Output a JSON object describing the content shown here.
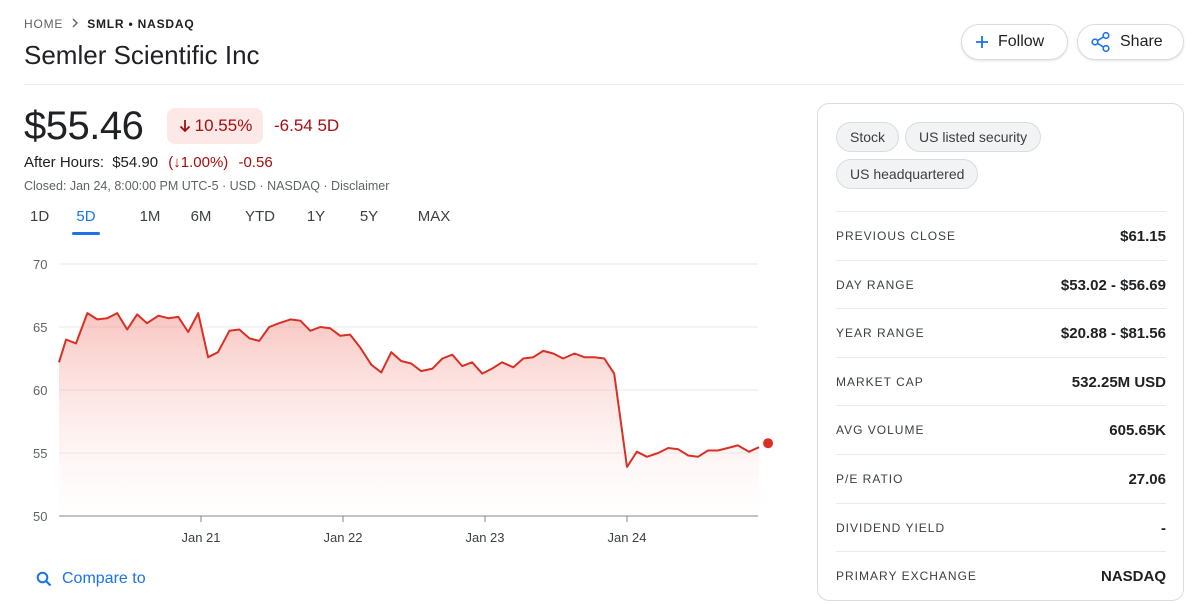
{
  "breadcrumb": {
    "home": "HOME",
    "ticker": "SMLR • NASDAQ"
  },
  "company": {
    "name": "Semler Scientific Inc"
  },
  "actions": {
    "follow_label": "Follow",
    "share_label": "Share"
  },
  "quote": {
    "price": "$55.46",
    "change_pct": "10.55%",
    "change_abs": "-6.54 5D",
    "after_hours_label": "After Hours:",
    "after_hours_price": "$54.90",
    "after_hours_pct": "(↓1.00%)",
    "after_hours_abs": "-0.56",
    "closed_line": "Closed: Jan 24, 8:00:00 PM UTC-5 · USD · NASDAQ · Disclaimer"
  },
  "colors": {
    "negative": "#a50e0e",
    "line": "#d93025",
    "accent": "#1a73e8"
  },
  "range_tabs": [
    "1D",
    "5D",
    "1M",
    "6M",
    "YTD",
    "1Y",
    "5Y",
    "MAX"
  ],
  "selected_range": "5D",
  "compare_label": "Compare to",
  "chips": [
    "Stock",
    "US listed security",
    "US headquartered"
  ],
  "stats": [
    {
      "label": "PREVIOUS CLOSE",
      "value": "$61.15"
    },
    {
      "label": "DAY RANGE",
      "value": "$53.02 - $56.69"
    },
    {
      "label": "YEAR RANGE",
      "value": "$20.88 - $81.56"
    },
    {
      "label": "MARKET CAP",
      "value": "532.25M USD"
    },
    {
      "label": "AVG VOLUME",
      "value": "605.65K"
    },
    {
      "label": "P/E RATIO",
      "value": "27.06"
    },
    {
      "label": "DIVIDEND YIELD",
      "value": "-"
    },
    {
      "label": "PRIMARY EXCHANGE",
      "value": "NASDAQ"
    }
  ],
  "chart_data": {
    "type": "area",
    "ylim": [
      50,
      70
    ],
    "y_ticks": [
      70,
      65,
      60,
      55,
      50
    ],
    "x_ticks": [
      {
        "label": "Jan 21",
        "x": 1
      },
      {
        "label": "Jan 22",
        "x": 2
      },
      {
        "label": "Jan 23",
        "x": 3
      },
      {
        "label": "Jan 24",
        "x": 4
      }
    ],
    "xlim": [
      0,
      5
    ],
    "grid": true,
    "points": [
      [
        0,
        62.2
      ],
      [
        0.05,
        64.0
      ],
      [
        0.12,
        63.7
      ],
      [
        0.2,
        66.1
      ],
      [
        0.27,
        65.6
      ],
      [
        0.34,
        65.7
      ],
      [
        0.41,
        66.1
      ],
      [
        0.48,
        64.8
      ],
      [
        0.55,
        66.0
      ],
      [
        0.62,
        65.3
      ],
      [
        0.7,
        65.9
      ],
      [
        0.77,
        65.7
      ],
      [
        0.84,
        65.8
      ],
      [
        0.91,
        64.6
      ],
      [
        0.98,
        66.1
      ],
      [
        1.05,
        62.6
      ],
      [
        1.12,
        63.0
      ],
      [
        1.2,
        64.7
      ],
      [
        1.27,
        64.8
      ],
      [
        1.34,
        64.1
      ],
      [
        1.41,
        63.9
      ],
      [
        1.48,
        65.0
      ],
      [
        1.55,
        65.3
      ],
      [
        1.63,
        65.6
      ],
      [
        1.7,
        65.5
      ],
      [
        1.77,
        64.7
      ],
      [
        1.84,
        65.0
      ],
      [
        1.91,
        64.9
      ],
      [
        1.98,
        64.3
      ],
      [
        2.05,
        64.4
      ],
      [
        2.12,
        63.4
      ],
      [
        2.2,
        62.0
      ],
      [
        2.27,
        61.4
      ],
      [
        2.34,
        63.0
      ],
      [
        2.41,
        62.3
      ],
      [
        2.48,
        62.1
      ],
      [
        2.55,
        61.5
      ],
      [
        2.63,
        61.7
      ],
      [
        2.7,
        62.5
      ],
      [
        2.77,
        62.8
      ],
      [
        2.84,
        61.9
      ],
      [
        2.91,
        62.2
      ],
      [
        2.98,
        61.3
      ],
      [
        3.05,
        61.7
      ],
      [
        3.12,
        62.2
      ],
      [
        3.2,
        61.8
      ],
      [
        3.27,
        62.5
      ],
      [
        3.34,
        62.6
      ],
      [
        3.41,
        63.1
      ],
      [
        3.48,
        62.9
      ],
      [
        3.55,
        62.5
      ],
      [
        3.63,
        62.9
      ],
      [
        3.7,
        62.6
      ],
      [
        3.77,
        62.6
      ],
      [
        3.84,
        62.5
      ],
      [
        3.91,
        61.3
      ],
      [
        4.0,
        53.9
      ],
      [
        4.07,
        55.1
      ],
      [
        4.14,
        54.7
      ],
      [
        4.22,
        55.0
      ],
      [
        4.29,
        55.4
      ],
      [
        4.36,
        55.3
      ],
      [
        4.43,
        54.8
      ],
      [
        4.5,
        54.7
      ],
      [
        4.57,
        55.2
      ],
      [
        4.64,
        55.2
      ],
      [
        4.71,
        55.4
      ],
      [
        4.78,
        55.6
      ],
      [
        4.86,
        55.1
      ],
      [
        4.93,
        55.46
      ]
    ]
  }
}
